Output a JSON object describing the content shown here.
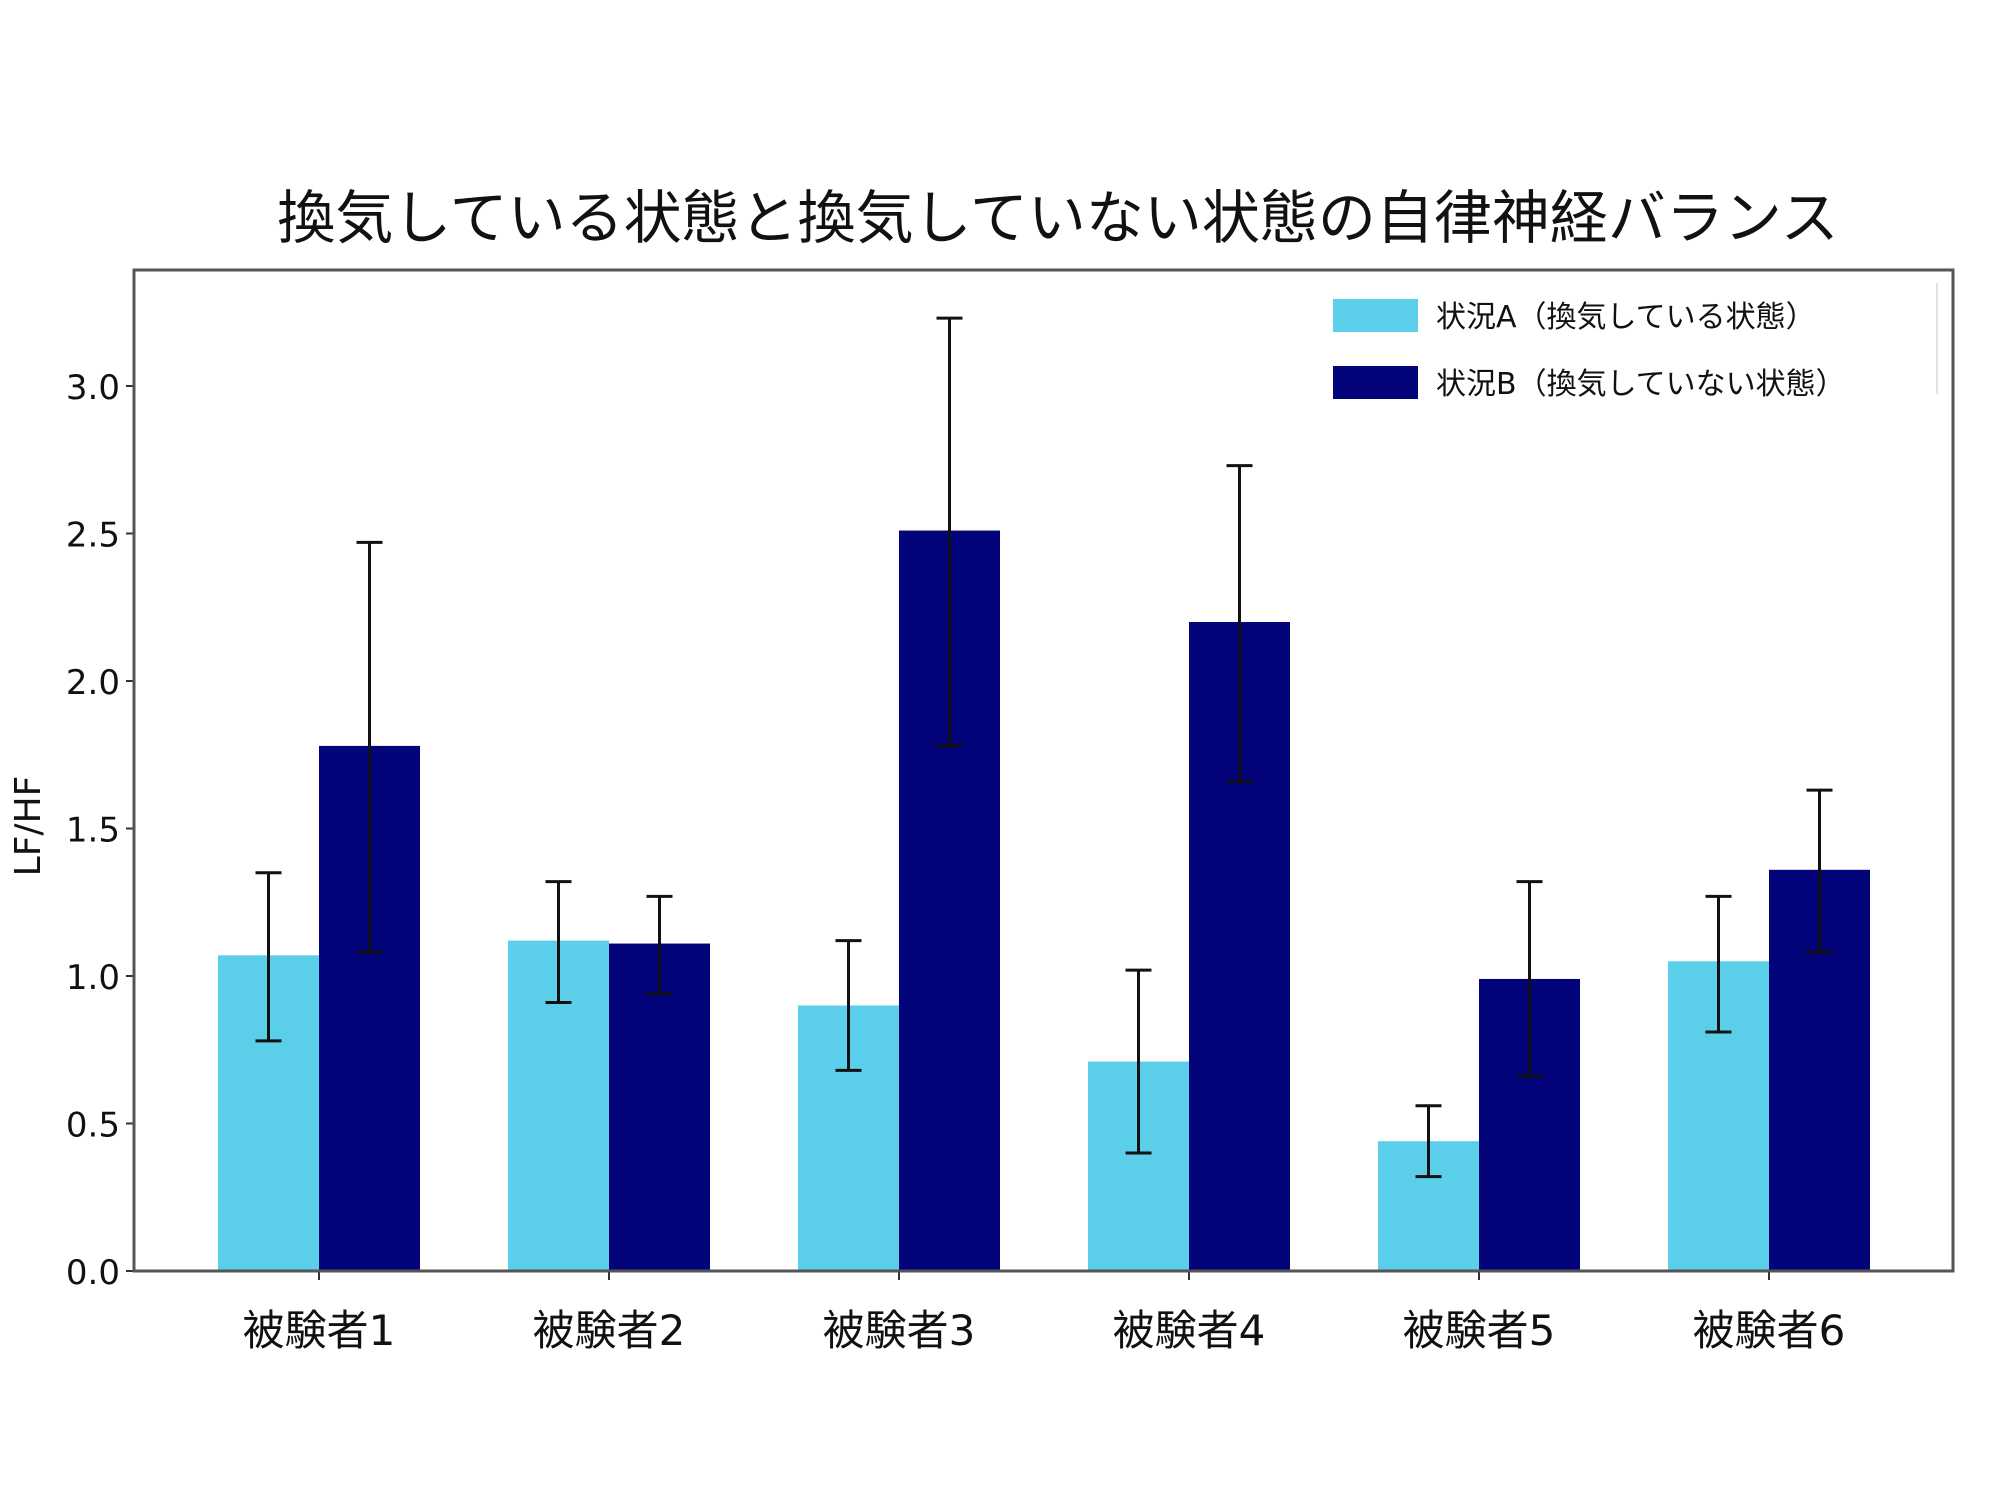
{
  "chart_data": {
    "type": "bar",
    "title": "換気している状態と換気していない状態の自律神経バランス",
    "ylabel": "LF/HF",
    "xlabel": "",
    "ylim": [
      0,
      3.4
    ],
    "yticks": [
      "0.0",
      "0.5",
      "1.0",
      "1.5",
      "2.0",
      "2.5",
      "3.0"
    ],
    "categories": [
      "被験者1",
      "被験者2",
      "被験者3",
      "被験者4",
      "被験者5",
      "被験者6"
    ],
    "series": [
      {
        "name": "状況A（換気している状態）",
        "color": "#5bcfea",
        "values": [
          1.07,
          1.12,
          0.9,
          0.71,
          0.44,
          1.05
        ],
        "error_low": [
          0.78,
          0.91,
          0.68,
          0.4,
          0.32,
          0.81
        ],
        "error_high": [
          1.35,
          1.32,
          1.12,
          1.02,
          0.56,
          1.27
        ]
      },
      {
        "name": "状況B（換気していない状態）",
        "color": "#03037a",
        "values": [
          1.78,
          1.11,
          2.51,
          2.2,
          0.99,
          1.36
        ],
        "error_low": [
          1.08,
          0.94,
          1.78,
          1.66,
          0.66,
          1.08
        ],
        "error_high": [
          2.47,
          1.27,
          3.23,
          2.73,
          1.32,
          1.63
        ]
      }
    ],
    "legend_position": "top-right",
    "grid": false
  }
}
